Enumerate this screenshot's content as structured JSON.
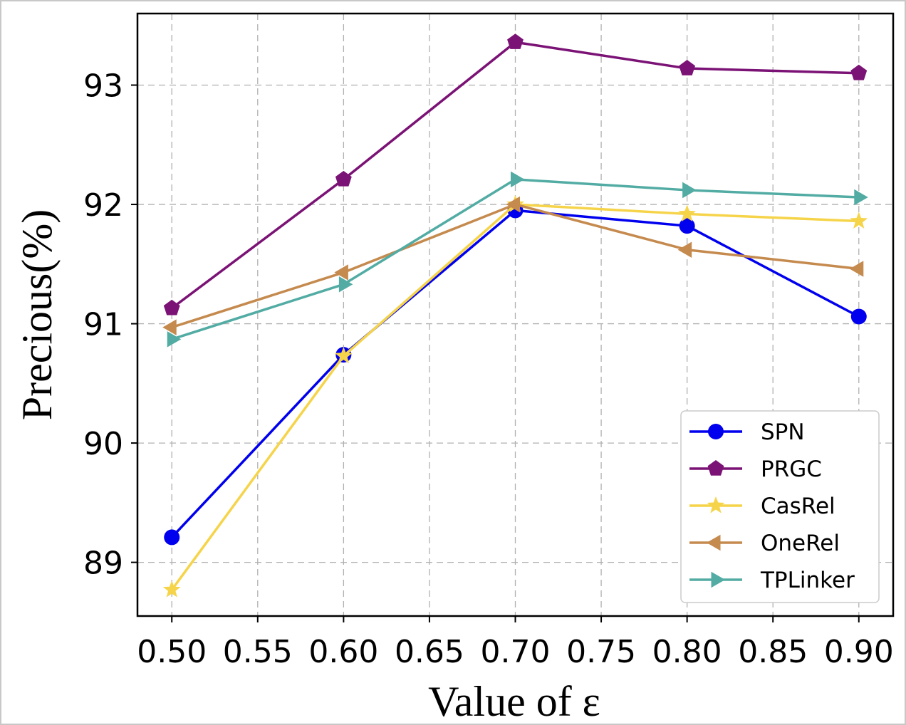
{
  "chart_data": {
    "type": "line",
    "xlabel": "Value of ε",
    "ylabel": "Precious(%)",
    "x": [
      0.5,
      0.6,
      0.7,
      0.8,
      0.9
    ],
    "xlim": [
      0.48,
      0.92
    ],
    "ylim": [
      88.55,
      93.6
    ],
    "xticks": [
      0.5,
      0.55,
      0.6,
      0.65,
      0.7,
      0.75,
      0.8,
      0.85,
      0.9
    ],
    "xtick_labels": [
      "0.50",
      "0.55",
      "0.60",
      "0.65",
      "0.70",
      "0.75",
      "0.80",
      "0.85",
      "0.90"
    ],
    "yticks": [
      89,
      90,
      91,
      92,
      93
    ],
    "ytick_labels": [
      "89",
      "90",
      "91",
      "92",
      "93"
    ],
    "grid": true,
    "legend_position": "bottom-right",
    "series": [
      {
        "name": "SPN",
        "color": "#0000ee",
        "marker": "circle",
        "values": [
          89.21,
          90.74,
          91.95,
          91.82,
          91.06
        ]
      },
      {
        "name": "PRGC",
        "color": "#7b1275",
        "marker": "pentagon",
        "values": [
          91.13,
          92.21,
          93.36,
          93.14,
          93.1
        ]
      },
      {
        "name": "CasRel",
        "color": "#f6d44a",
        "marker": "star",
        "values": [
          88.77,
          90.73,
          92.0,
          91.92,
          91.86
        ]
      },
      {
        "name": "OneRel",
        "color": "#c58a4e",
        "marker": "triangle-left",
        "values": [
          90.97,
          91.43,
          92.0,
          91.62,
          91.46
        ]
      },
      {
        "name": "TPLinker",
        "color": "#52aca4",
        "marker": "triangle-right",
        "values": [
          90.87,
          91.33,
          92.21,
          92.12,
          92.06
        ]
      }
    ]
  }
}
